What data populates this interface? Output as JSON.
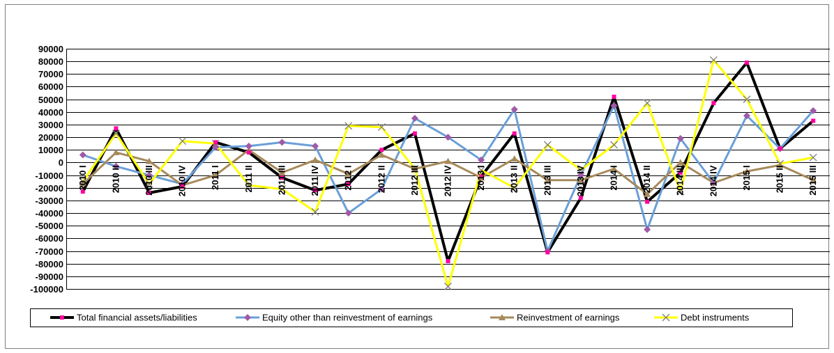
{
  "chart_data": {
    "type": "line",
    "title": "",
    "xlabel": "",
    "ylabel": "",
    "ylim": [
      -100000,
      90000
    ],
    "ytick_step": 10000,
    "grid": true,
    "legend_position": "bottom",
    "categories": [
      "2010 I",
      "2010 II",
      "2010 III",
      "2010 IV",
      "2011 I",
      "2011 II",
      "2011 III",
      "2011 IV",
      "2012 I",
      "2012 II",
      "2012 III",
      "2012 IV",
      "2013 I",
      "2013 II",
      "2013 III",
      "2013 IV",
      "2014 I",
      "2014 II",
      "2014 III",
      "2014 IV",
      "2015 I",
      "2015 II",
      "2015 III"
    ],
    "series": [
      {
        "name": "Total financial assets/liabilities",
        "color": "#000000",
        "marker": "square",
        "marker_color": "#ff00a0",
        "values": [
          -23000,
          27000,
          -24000,
          -19000,
          16000,
          8000,
          -12000,
          -22000,
          -17000,
          10000,
          23000,
          -78000,
          -11000,
          23000,
          -71000,
          -28000,
          52000,
          -31000,
          -8000,
          47000,
          79000,
          11000,
          33000
        ]
      },
      {
        "name": "Equity other than reinvestment of earnings",
        "color": "#6a9fd8",
        "marker": "diamond",
        "marker_color": "#a05aa8",
        "values": [
          6000,
          -3000,
          -10000,
          -17000,
          12000,
          13000,
          16000,
          13000,
          -40000,
          -21000,
          35000,
          20000,
          2000,
          42000,
          -70000,
          -10000,
          45000,
          -53000,
          19000,
          -16000,
          37000,
          11000,
          41000
        ]
      },
      {
        "name": "Reinvestment of earnings",
        "color": "#a68a5b",
        "marker": "triangle",
        "marker_color": "#a68a5b",
        "values": [
          -17000,
          8000,
          1000,
          -18000,
          -10000,
          10000,
          -8000,
          2000,
          -9000,
          6000,
          -5000,
          1000,
          -12000,
          3000,
          -14000,
          -14000,
          -5000,
          -25000,
          0,
          -16000,
          -7000,
          -2000,
          -14000
        ]
      },
      {
        "name": "Debt instruments",
        "color": "#ffff00",
        "marker": "x",
        "marker_color": "#7f7f7f",
        "values": [
          -15000,
          23000,
          -17000,
          17000,
          15000,
          -18000,
          -21000,
          -39000,
          29000,
          28000,
          -5000,
          -98000,
          -6000,
          -20000,
          14000,
          -6000,
          14000,
          47000,
          -23000,
          81000,
          50000,
          -1000,
          4000
        ]
      }
    ]
  }
}
